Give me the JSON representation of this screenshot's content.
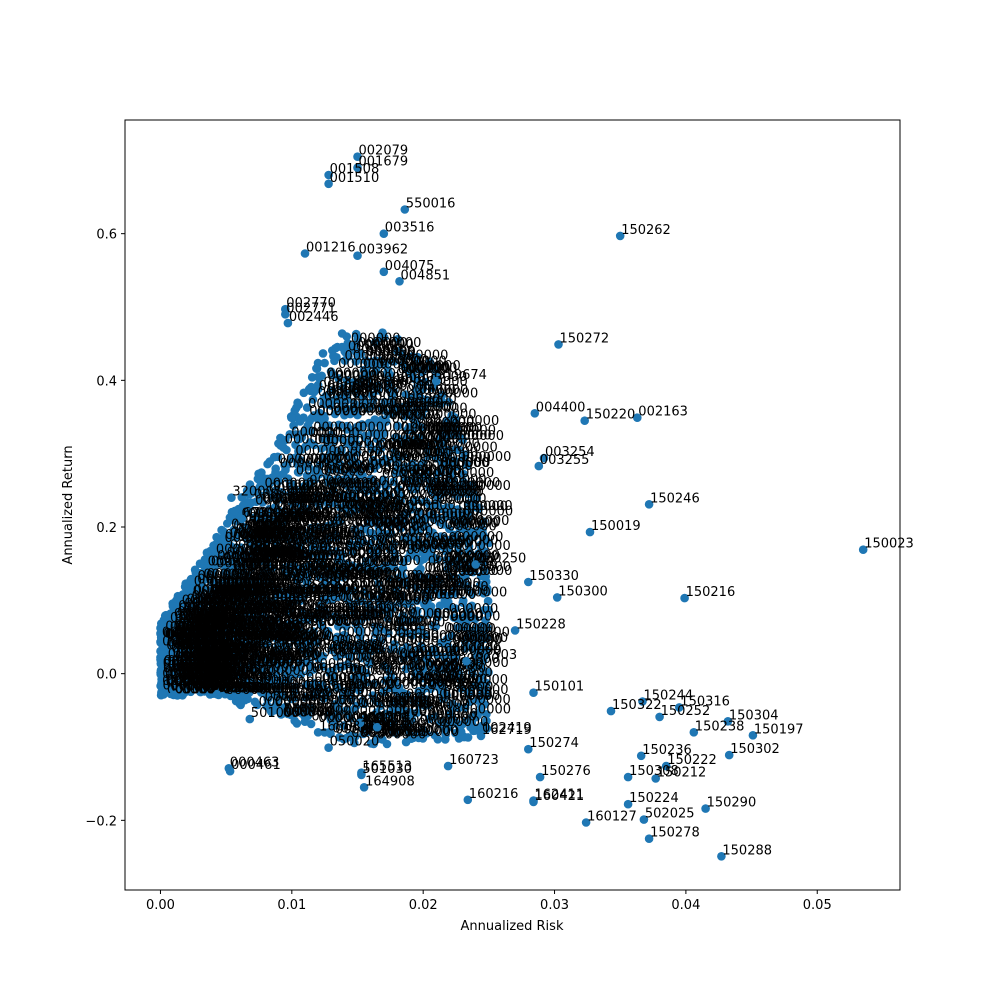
{
  "chart_data": {
    "type": "scatter",
    "title": "",
    "xlabel": "Annualized Risk",
    "ylabel": "Annualized Return",
    "xlim": [
      -0.0027,
      0.0563
    ],
    "ylim": [
      -0.295,
      0.755
    ],
    "xticks": [
      0.0,
      0.01,
      0.02,
      0.03,
      0.04,
      0.05
    ],
    "xtick_labels": [
      "0.00",
      "0.01",
      "0.02",
      "0.03",
      "0.04",
      "0.05"
    ],
    "yticks": [
      -0.2,
      0.0,
      0.2,
      0.4,
      0.6
    ],
    "ytick_labels": [
      "−0.2",
      "0.0",
      "0.2",
      "0.4",
      "0.6"
    ],
    "marker_color": "#1f77b4",
    "grid": false,
    "labeled_points": [
      {
        "label": "002079",
        "x": 0.015,
        "y": 0.705
      },
      {
        "label": "001679",
        "x": 0.015,
        "y": 0.69
      },
      {
        "label": "001508",
        "x": 0.0128,
        "y": 0.68
      },
      {
        "label": "001510",
        "x": 0.0128,
        "y": 0.668
      },
      {
        "label": "550016",
        "x": 0.0186,
        "y": 0.633
      },
      {
        "label": "003516",
        "x": 0.017,
        "y": 0.6
      },
      {
        "label": "150262",
        "x": 0.035,
        "y": 0.597
      },
      {
        "label": "001216",
        "x": 0.011,
        "y": 0.573
      },
      {
        "label": "003962",
        "x": 0.015,
        "y": 0.57
      },
      {
        "label": "004075",
        "x": 0.017,
        "y": 0.548
      },
      {
        "label": "004851",
        "x": 0.0182,
        "y": 0.535
      },
      {
        "label": "002770",
        "x": 0.0095,
        "y": 0.497
      },
      {
        "label": "002771",
        "x": 0.0095,
        "y": 0.49
      },
      {
        "label": "002446",
        "x": 0.0097,
        "y": 0.478
      },
      {
        "label": "150272",
        "x": 0.0303,
        "y": 0.449
      },
      {
        "label": "519674",
        "x": 0.021,
        "y": 0.399
      },
      {
        "label": "004400",
        "x": 0.0285,
        "y": 0.355
      },
      {
        "label": "150220",
        "x": 0.0323,
        "y": 0.345
      },
      {
        "label": "002163",
        "x": 0.0363,
        "y": 0.349
      },
      {
        "label": "003254",
        "x": 0.0292,
        "y": 0.294
      },
      {
        "label": "003255",
        "x": 0.0288,
        "y": 0.283
      },
      {
        "label": "150246",
        "x": 0.0372,
        "y": 0.231
      },
      {
        "label": "150019",
        "x": 0.0327,
        "y": 0.193
      },
      {
        "label": "150023",
        "x": 0.0535,
        "y": 0.169
      },
      {
        "label": "150250",
        "x": 0.024,
        "y": 0.149
      },
      {
        "label": "150330",
        "x": 0.028,
        "y": 0.125
      },
      {
        "label": "150300",
        "x": 0.0302,
        "y": 0.104
      },
      {
        "label": "150216",
        "x": 0.0399,
        "y": 0.103
      },
      {
        "label": "150228",
        "x": 0.027,
        "y": 0.059
      },
      {
        "label": "167503",
        "x": 0.0233,
        "y": 0.017
      },
      {
        "label": "150101",
        "x": 0.0284,
        "y": -0.026
      },
      {
        "label": "150244",
        "x": 0.0367,
        "y": -0.038
      },
      {
        "label": "150316",
        "x": 0.0395,
        "y": -0.046
      },
      {
        "label": "150322",
        "x": 0.0343,
        "y": -0.051
      },
      {
        "label": "150252",
        "x": 0.038,
        "y": -0.059
      },
      {
        "label": "150304",
        "x": 0.0432,
        "y": -0.065
      },
      {
        "label": "150238",
        "x": 0.0406,
        "y": -0.08
      },
      {
        "label": "150197",
        "x": 0.0451,
        "y": -0.084
      },
      {
        "label": "002419",
        "x": 0.0244,
        "y": -0.082
      },
      {
        "label": "162719",
        "x": 0.0244,
        "y": -0.085
      },
      {
        "label": "150274",
        "x": 0.028,
        "y": -0.103
      },
      {
        "label": "150236",
        "x": 0.0366,
        "y": -0.112
      },
      {
        "label": "150302",
        "x": 0.0433,
        "y": -0.111
      },
      {
        "label": "150222",
        "x": 0.0385,
        "y": -0.126
      },
      {
        "label": "150276",
        "x": 0.0289,
        "y": -0.141
      },
      {
        "label": "150308",
        "x": 0.0356,
        "y": -0.141
      },
      {
        "label": "150212",
        "x": 0.0377,
        "y": -0.143
      },
      {
        "label": "160723",
        "x": 0.0219,
        "y": -0.126
      },
      {
        "label": "160216",
        "x": 0.0234,
        "y": -0.172
      },
      {
        "label": "162411",
        "x": 0.0284,
        "y": -0.173
      },
      {
        "label": "160421",
        "x": 0.0284,
        "y": -0.175
      },
      {
        "label": "150224",
        "x": 0.0356,
        "y": -0.178
      },
      {
        "label": "150290",
        "x": 0.0415,
        "y": -0.184
      },
      {
        "label": "502025",
        "x": 0.0368,
        "y": -0.199
      },
      {
        "label": "160127",
        "x": 0.0324,
        "y": -0.203
      },
      {
        "label": "150278",
        "x": 0.0372,
        "y": -0.225
      },
      {
        "label": "150288",
        "x": 0.0427,
        "y": -0.249
      },
      {
        "label": "000463",
        "x": 0.0052,
        "y": -0.129
      },
      {
        "label": "000461",
        "x": 0.0053,
        "y": -0.133
      },
      {
        "label": "050020",
        "x": 0.0128,
        "y": -0.101
      },
      {
        "label": "165513",
        "x": 0.0153,
        "y": -0.135
      },
      {
        "label": "164908",
        "x": 0.0155,
        "y": -0.155
      },
      {
        "label": "501030",
        "x": 0.0153,
        "y": -0.138
      },
      {
        "label": "164304",
        "x": 0.0152,
        "y": -0.067
      },
      {
        "label": "162509",
        "x": 0.0165,
        "y": -0.073
      },
      {
        "label": "501005",
        "x": 0.0068,
        "y": -0.062
      },
      {
        "label": "160637",
        "x": 0.012,
        "y": -0.08
      },
      {
        "label": "320001",
        "x": 0.0054,
        "y": 0.24
      },
      {
        "label": "673",
        "x": 0.0062,
        "y": 0.211
      },
      {
        "label": "00385",
        "x": 0.001,
        "y": -0.029
      },
      {
        "label": "00175",
        "x": 0.0043,
        "y": -0.028
      }
    ]
  }
}
